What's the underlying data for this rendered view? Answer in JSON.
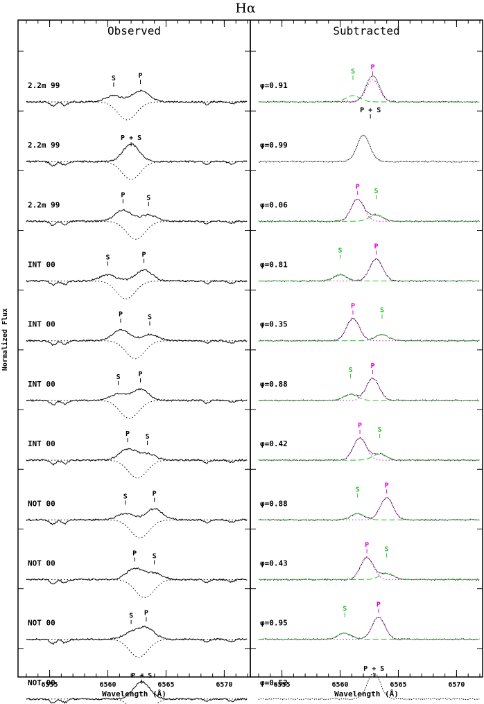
{
  "chart_data": {
    "type": "line",
    "title": "Hα",
    "ylabel": "Normalized Flux",
    "xlabel": "Wavelength (Å)",
    "xlim": [
      6553,
      6572
    ],
    "xticks": [
      6555,
      6560,
      6565,
      6570
    ],
    "panels": [
      {
        "title": "Observed",
        "spectra": [
          {
            "label": "2.2m  99",
            "markers": [
              {
                "text": "S",
                "x": 6560.5
              },
              {
                "text": "P",
                "x": 6562.8
              }
            ]
          },
          {
            "label": "2.2m  99",
            "markers": [
              {
                "text": "P + S",
                "x": 6562.0
              }
            ]
          },
          {
            "label": "2.2m  99",
            "markers": [
              {
                "text": "P",
                "x": 6561.3
              },
              {
                "text": "S",
                "x": 6563.5
              }
            ]
          },
          {
            "label": "INT  00",
            "markers": [
              {
                "text": "S",
                "x": 6560.0
              },
              {
                "text": "P",
                "x": 6563.1
              }
            ]
          },
          {
            "label": "INT  00",
            "markers": [
              {
                "text": "P",
                "x": 6561.1
              },
              {
                "text": "S",
                "x": 6563.6
              }
            ]
          },
          {
            "label": "INT  00",
            "markers": [
              {
                "text": "S",
                "x": 6560.9
              },
              {
                "text": "P",
                "x": 6562.8
              }
            ]
          },
          {
            "label": "INT  00",
            "markers": [
              {
                "text": "P",
                "x": 6561.7
              },
              {
                "text": "S",
                "x": 6563.4
              }
            ]
          },
          {
            "label": "NOT  00",
            "markers": [
              {
                "text": "S",
                "x": 6561.5
              },
              {
                "text": "P",
                "x": 6564.0
              }
            ]
          },
          {
            "label": "NOT  00",
            "markers": [
              {
                "text": "P",
                "x": 6562.3
              },
              {
                "text": "S",
                "x": 6564.0
              }
            ]
          },
          {
            "label": "NOT  00",
            "markers": [
              {
                "text": "S",
                "x": 6562.0
              },
              {
                "text": "P",
                "x": 6563.3
              }
            ]
          },
          {
            "label": "NOT  00",
            "markers": [
              {
                "text": "P + S",
                "x": 6562.9
              }
            ]
          }
        ]
      },
      {
        "title": "Subtracted",
        "spectra": [
          {
            "label": "φ=0.91",
            "markers": [
              {
                "text": "S",
                "x": 6561.1,
                "color": "#22c022"
              },
              {
                "text": "P",
                "x": 6562.8,
                "color": "#e000e0"
              },
              {
                "text": "P + S",
                "x": 6562.6,
                "color": "#000000",
                "below": true
              }
            ]
          },
          {
            "label": "φ=0.99",
            "markers": []
          },
          {
            "label": "φ=0.06",
            "markers": [
              {
                "text": "P",
                "x": 6561.5,
                "color": "#e000e0"
              },
              {
                "text": "S",
                "x": 6563.1,
                "color": "#22c022"
              }
            ]
          },
          {
            "label": "φ=0.81",
            "markers": [
              {
                "text": "S",
                "x": 6560.0,
                "color": "#22c022"
              },
              {
                "text": "P",
                "x": 6563.1,
                "color": "#e000e0"
              }
            ]
          },
          {
            "label": "φ=0.35",
            "markers": [
              {
                "text": "P",
                "x": 6561.1,
                "color": "#e000e0"
              },
              {
                "text": "S",
                "x": 6563.6,
                "color": "#22c022"
              }
            ]
          },
          {
            "label": "φ=0.88",
            "markers": [
              {
                "text": "S",
                "x": 6560.9,
                "color": "#22c022"
              },
              {
                "text": "P",
                "x": 6562.8,
                "color": "#e000e0"
              }
            ]
          },
          {
            "label": "φ=0.42",
            "markers": [
              {
                "text": "P",
                "x": 6561.7,
                "color": "#e000e0"
              },
              {
                "text": "S",
                "x": 6563.4,
                "color": "#22c022"
              }
            ]
          },
          {
            "label": "φ=0.88",
            "markers": [
              {
                "text": "S",
                "x": 6561.5,
                "color": "#22c022"
              },
              {
                "text": "P",
                "x": 6564.0,
                "color": "#e000e0"
              }
            ]
          },
          {
            "label": "φ=0.43",
            "markers": [
              {
                "text": "P",
                "x": 6562.3,
                "color": "#e000e0"
              },
              {
                "text": "S",
                "x": 6564.0,
                "color": "#22c022"
              }
            ]
          },
          {
            "label": "φ=0.95",
            "markers": [
              {
                "text": "S",
                "x": 6560.4,
                "color": "#22c022"
              },
              {
                "text": "P",
                "x": 6563.3,
                "color": "#e000e0"
              }
            ]
          },
          {
            "label": "φ=0.52",
            "markers": [
              {
                "text": "P + S",
                "x": 6562.9,
                "color": "#000000"
              }
            ]
          }
        ]
      }
    ]
  }
}
